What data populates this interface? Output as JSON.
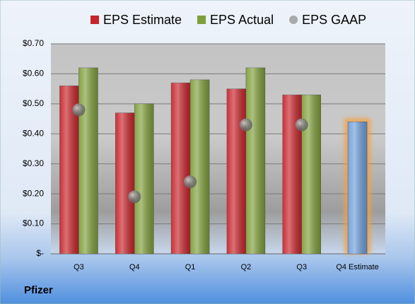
{
  "chart_data": {
    "type": "bar",
    "title": "Pfizer",
    "categories": [
      "Q3",
      "Q4",
      "Q1",
      "Q2",
      "Q3",
      "Q4 Estimate"
    ],
    "series": [
      {
        "name": "EPS Estimate",
        "color": "#c8242b",
        "colors": [
          "#c8242b",
          "#c8242b",
          "#c8242b",
          "#c8242b",
          "#c8242b",
          "#6e9fdc"
        ],
        "values": [
          0.56,
          0.47,
          0.57,
          0.55,
          0.53,
          0.44
        ]
      },
      {
        "name": "EPS Actual",
        "color": "#7f9f3a",
        "values": [
          0.62,
          0.5,
          0.58,
          0.62,
          0.53,
          null
        ]
      },
      {
        "name": "EPS GAAP",
        "color": "#8a8a8a",
        "type": "scatter",
        "values": [
          0.48,
          0.19,
          0.24,
          0.43,
          0.43,
          null
        ]
      }
    ],
    "ylim": [
      0,
      0.7
    ],
    "yticks": [
      {
        "value": 0,
        "label": "$-"
      },
      {
        "value": 0.1,
        "label": "$0.10"
      },
      {
        "value": 0.2,
        "label": "$0.20"
      },
      {
        "value": 0.3,
        "label": "$0.30"
      },
      {
        "value": 0.4,
        "label": "$0.40"
      },
      {
        "value": 0.5,
        "label": "$0.50"
      },
      {
        "value": 0.6,
        "label": "$0.60"
      },
      {
        "value": 0.7,
        "label": "$0.70"
      }
    ],
    "grid": true
  }
}
